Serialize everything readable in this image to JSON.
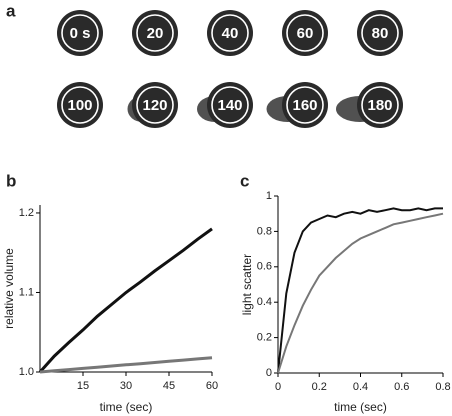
{
  "panel_labels": [
    "a",
    "b",
    "c"
  ],
  "frames": [
    "0 s",
    "20",
    "40",
    "60",
    "80",
    "100",
    "120",
    "140",
    "160",
    "180"
  ],
  "chart_data": [
    {
      "type": "line",
      "x_label": "time (sec)",
      "y_label": "relative volume",
      "x": [
        0,
        5,
        10,
        15,
        20,
        25,
        30,
        35,
        40,
        45,
        50,
        55,
        60
      ],
      "series": [
        {
          "color": "#111111",
          "values": [
            1.0,
            1.02,
            1.037,
            1.053,
            1.07,
            1.085,
            1.1,
            1.113,
            1.127,
            1.14,
            1.153,
            1.167,
            1.18
          ]
        },
        {
          "color": "#777777",
          "values": [
            1.0,
            1.0015,
            1.003,
            1.0045,
            1.006,
            1.0075,
            1.009,
            1.0105,
            1.012,
            1.0135,
            1.015,
            1.0165,
            1.018
          ]
        }
      ],
      "xlim": [
        0,
        60
      ],
      "xticks": [
        15,
        30,
        45,
        60
      ],
      "ylim": [
        1.0,
        1.21
      ],
      "yticks": [
        {
          "value": 1.0,
          "label": "1.0"
        },
        {
          "value": 1.1,
          "label": "1.1"
        },
        {
          "value": 1.2,
          "label": "1.2"
        }
      ]
    },
    {
      "type": "line",
      "x_label": "time (sec)",
      "y_label": "light scatter",
      "x": [
        0,
        0.04,
        0.08,
        0.12,
        0.16,
        0.2,
        0.24,
        0.28,
        0.32,
        0.36,
        0.4,
        0.44,
        0.48,
        0.52,
        0.56,
        0.6,
        0.64,
        0.68,
        0.72,
        0.76,
        0.8
      ],
      "series": [
        {
          "color": "#111111",
          "values": [
            0,
            0.45,
            0.68,
            0.8,
            0.85,
            0.87,
            0.89,
            0.88,
            0.9,
            0.91,
            0.9,
            0.92,
            0.91,
            0.92,
            0.93,
            0.92,
            0.92,
            0.93,
            0.92,
            0.93,
            0.93
          ]
        },
        {
          "color": "#777777",
          "values": [
            0,
            0.15,
            0.27,
            0.38,
            0.47,
            0.55,
            0.6,
            0.65,
            0.69,
            0.73,
            0.76,
            0.78,
            0.8,
            0.82,
            0.84,
            0.85,
            0.86,
            0.87,
            0.88,
            0.89,
            0.9
          ]
        }
      ],
      "xlim": [
        0,
        0.8
      ],
      "xticks": [
        0,
        0.2,
        0.4,
        0.6,
        0.8
      ],
      "ylim": [
        0,
        1
      ],
      "yticks": [
        0,
        0.2,
        0.4,
        0.6,
        0.8,
        1
      ]
    }
  ]
}
